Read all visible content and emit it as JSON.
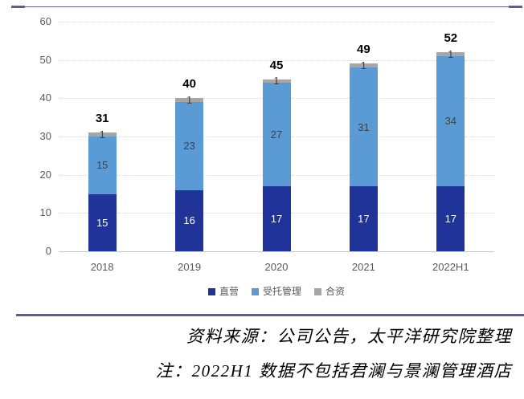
{
  "decor": {
    "accent_line_color": "#5a5e99"
  },
  "chart_data": {
    "type": "bar",
    "stacked": true,
    "categories": [
      "2018",
      "2019",
      "2020",
      "2021",
      "2022H1"
    ],
    "series": [
      {
        "name": "直营",
        "color": "#1f3399",
        "label_color": "#ffffff",
        "values": [
          15,
          16,
          17,
          17,
          17
        ]
      },
      {
        "name": "受托管理",
        "color": "#5b9bd5",
        "label_color": "#404040",
        "values": [
          15,
          23,
          27,
          31,
          34
        ]
      },
      {
        "name": "合资",
        "color": "#a6a6a6",
        "label_color": "#404040",
        "values": [
          1,
          1,
          1,
          1,
          1
        ]
      }
    ],
    "totals": [
      31,
      40,
      45,
      49,
      52
    ],
    "title": "",
    "xlabel": "",
    "ylabel": "",
    "ylim": [
      0,
      60
    ],
    "yticks": [
      0,
      10,
      20,
      30,
      40,
      50,
      60
    ],
    "grid": true,
    "legend_position": "bottom"
  },
  "footer": {
    "source_line": "资料来源：公司公告，太平洋研究院整理",
    "note_line": "注：2022H1 数据不包括君澜与景澜管理酒店"
  }
}
